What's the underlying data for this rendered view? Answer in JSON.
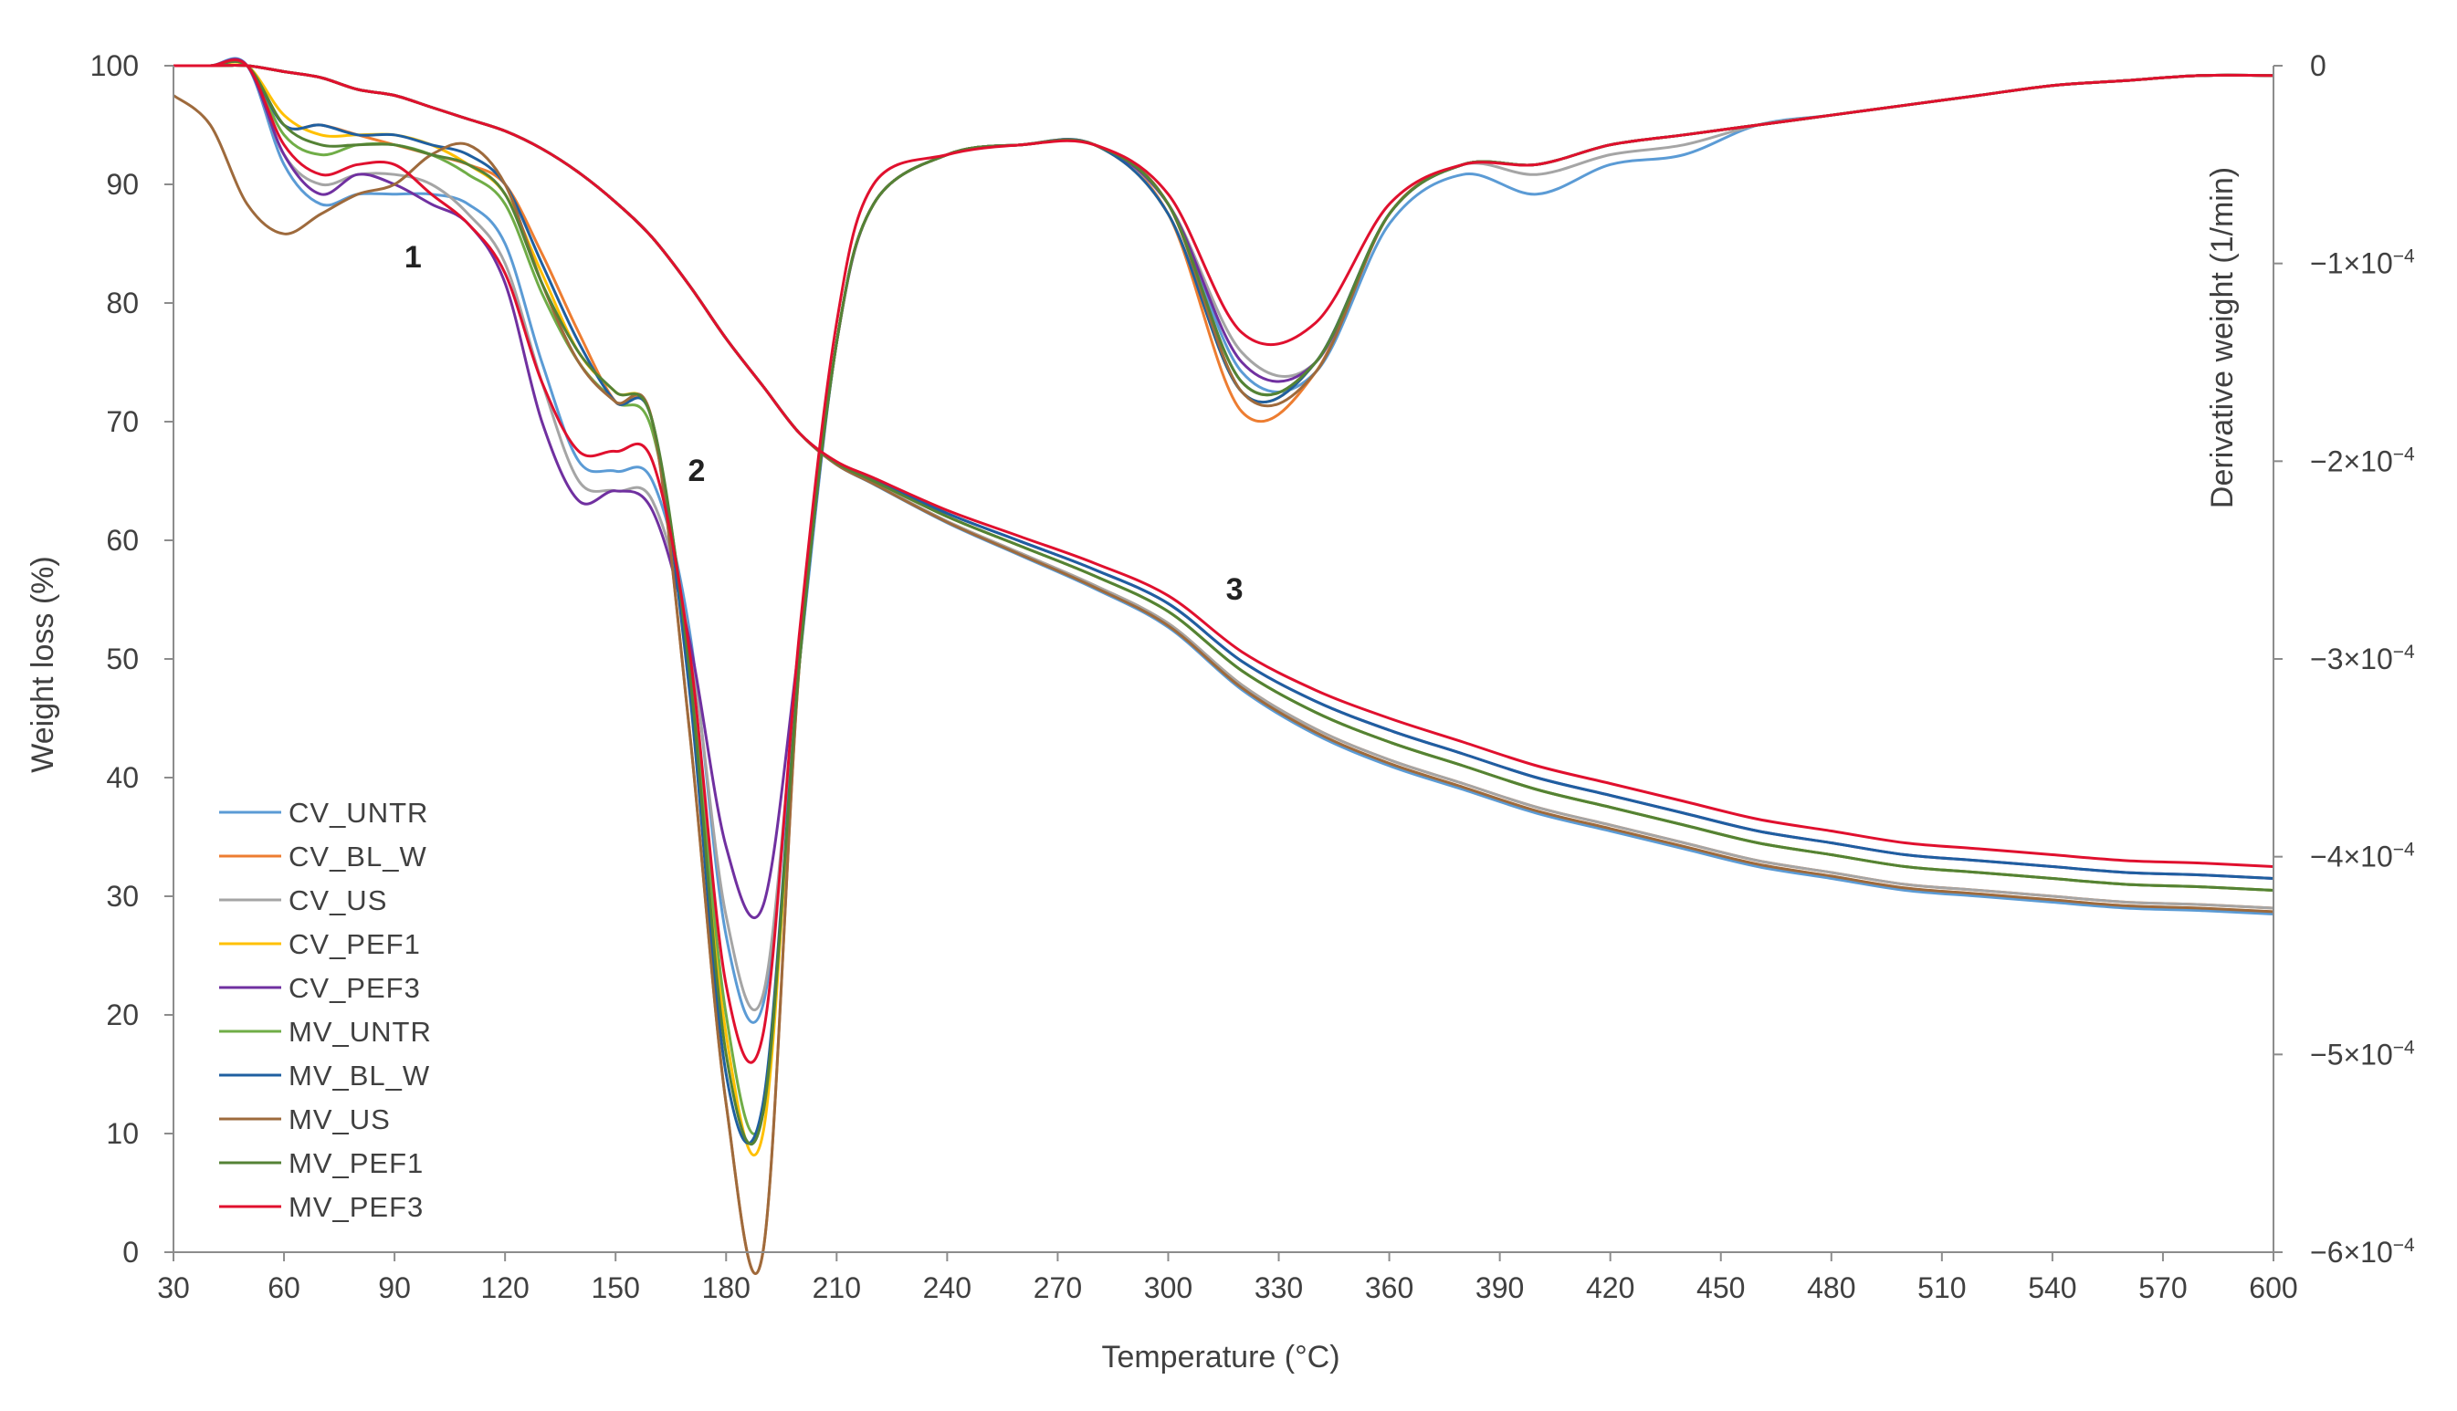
{
  "chart_data": {
    "type": "line",
    "xlabel": "Temperature (°C)",
    "ylabel_left": "Weight loss (%)",
    "ylabel_right": "Derivative weight (1/min)",
    "xlim": [
      30,
      600
    ],
    "ylim_left": [
      0,
      100
    ],
    "ylim_right": [
      -0.0006,
      0
    ],
    "x_ticks": [
      30,
      60,
      90,
      120,
      150,
      180,
      210,
      240,
      270,
      300,
      330,
      360,
      390,
      420,
      450,
      480,
      510,
      540,
      570,
      600
    ],
    "y_left_ticks": [
      0,
      10,
      20,
      30,
      40,
      50,
      60,
      70,
      80,
      90,
      100
    ],
    "y_right_ticks": [
      {
        "value": 0,
        "label": "0",
        "exp": ""
      },
      {
        "value": -0.0001,
        "label": "−1×10",
        "exp": "−4"
      },
      {
        "value": -0.0002,
        "label": "−2×10",
        "exp": "−4"
      },
      {
        "value": -0.0003,
        "label": "−3×10",
        "exp": "−4"
      },
      {
        "value": -0.0004,
        "label": "−4×10",
        "exp": "−4"
      },
      {
        "value": -0.0005,
        "label": "−5×10",
        "exp": "−4"
      },
      {
        "value": -0.0006,
        "label": "−6×10",
        "exp": "−4"
      }
    ],
    "grid": false,
    "legend_position": "bottom-left",
    "annotations": [
      {
        "text": "1",
        "x": 95,
        "y": 83
      },
      {
        "text": "2",
        "x": 172,
        "y": 65
      },
      {
        "text": "3",
        "x": 318,
        "y": 55
      }
    ],
    "tga_shared": {
      "x": [
        30,
        40,
        50,
        60,
        70,
        80,
        90,
        100,
        110,
        120,
        130,
        140,
        150,
        160,
        170,
        180,
        190,
        200,
        210,
        220,
        240,
        260,
        280,
        300,
        320,
        340,
        360,
        380,
        400,
        420,
        440,
        460,
        480,
        500,
        520,
        540,
        560,
        580,
        600
      ],
      "y": [
        100,
        100,
        100,
        99.5,
        99,
        98,
        97.5,
        96.5,
        95.5,
        94.5,
        93,
        91,
        88.5,
        85.5,
        81.5,
        77,
        73,
        69,
        66.5,
        65,
        62,
        59.5,
        57,
        54,
        49,
        45.5,
        43,
        41,
        39,
        37.5,
        36,
        34.5,
        33.5,
        32.5,
        32,
        31.5,
        31,
        30.8,
        30.5
      ]
    },
    "series": [
      {
        "name": "CV_UNTR",
        "color": "#5b9bd5",
        "tga_offset": -2,
        "dtg_rate": [
          0,
          0,
          0,
          1.0,
          1.4,
          1.3,
          1.3,
          1.3,
          1.4,
          1.8,
          3.0,
          4.0,
          4.1,
          4.2,
          5.7,
          8.8,
          9.5,
          6.0,
          2.8,
          1.4,
          0.9,
          0.8,
          0.8,
          1.4,
          3.1,
          3.1,
          1.6,
          1.1,
          1.3,
          1.0,
          0.9,
          0.6,
          0.5,
          0.4,
          0.3,
          0.2,
          0.15,
          0.1,
          0.1
        ]
      },
      {
        "name": "CV_BL_W",
        "color": "#ed7d31",
        "tga_offset": -1.5,
        "dtg_rate": [
          0,
          0,
          0,
          0.6,
          0.6,
          0.7,
          0.8,
          0.9,
          1.0,
          1.2,
          1.9,
          2.7,
          3.4,
          3.6,
          6.7,
          10.5,
          12.0,
          6.0,
          2.8,
          1.4,
          0.9,
          0.8,
          0.8,
          1.5,
          3.5,
          3.1,
          1.5,
          1.0,
          1.0,
          0.8,
          0.7,
          0.6,
          0.5,
          0.4,
          0.3,
          0.2,
          0.15,
          0.1,
          0.1
        ]
      },
      {
        "name": "CV_US",
        "color": "#a5a5a5",
        "tga_offset": -1.5,
        "dtg_rate": [
          0,
          0,
          0,
          0.9,
          1.2,
          1.1,
          1.1,
          1.2,
          1.5,
          2.0,
          3.2,
          4.2,
          4.3,
          4.4,
          5.8,
          8.6,
          9.4,
          5.9,
          2.8,
          1.4,
          0.9,
          0.8,
          0.8,
          1.4,
          2.9,
          3.0,
          1.5,
          1.0,
          1.1,
          0.9,
          0.8,
          0.6,
          0.5,
          0.4,
          0.3,
          0.2,
          0.15,
          0.1,
          0.1
        ]
      },
      {
        "name": "CV_PEF1",
        "color": "#ffc000",
        "tga_offset": 0,
        "dtg_rate": [
          0,
          0,
          0,
          0.5,
          0.7,
          0.7,
          0.7,
          0.8,
          1.0,
          1.3,
          2.1,
          2.9,
          3.3,
          3.6,
          6.2,
          9.8,
          10.8,
          6.0,
          2.8,
          1.4,
          0.9,
          0.8,
          0.8,
          1.5,
          3.3,
          3.0,
          1.5,
          1.0,
          1.0,
          0.8,
          0.7,
          0.6,
          0.5,
          0.4,
          0.3,
          0.2,
          0.15,
          0.1,
          0.1
        ]
      },
      {
        "name": "CV_PEF3",
        "color": "#7030a0",
        "tga_offset": 1,
        "dtg_rate": [
          0,
          0,
          0,
          0.9,
          1.3,
          1.1,
          1.2,
          1.4,
          1.6,
          2.2,
          3.6,
          4.4,
          4.3,
          4.5,
          5.8,
          7.9,
          8.5,
          5.8,
          2.8,
          1.4,
          0.9,
          0.8,
          0.8,
          1.4,
          3.0,
          3.0,
          1.5,
          1.0,
          1.0,
          0.8,
          0.7,
          0.6,
          0.5,
          0.4,
          0.3,
          0.2,
          0.15,
          0.1,
          0.1
        ]
      },
      {
        "name": "MV_UNTR",
        "color": "#70ad47",
        "tga_offset": 0,
        "dtg_rate": [
          0,
          0,
          0,
          0.7,
          0.9,
          0.8,
          0.8,
          0.9,
          1.1,
          1.4,
          2.3,
          3.0,
          3.4,
          3.7,
          6.0,
          9.6,
          10.6,
          6.0,
          2.8,
          1.4,
          0.9,
          0.8,
          0.8,
          1.4,
          3.2,
          3.0,
          1.5,
          1.0,
          1.0,
          0.8,
          0.7,
          0.6,
          0.5,
          0.4,
          0.3,
          0.2,
          0.15,
          0.1,
          0.1
        ]
      },
      {
        "name": "MV_BL_W",
        "color": "#1f5fa0",
        "tga_offset": 1,
        "dtg_rate": [
          0,
          0,
          0,
          0.6,
          0.6,
          0.7,
          0.7,
          0.8,
          0.9,
          1.2,
          2.0,
          2.8,
          3.4,
          3.6,
          6.3,
          10.2,
          10.5,
          6.0,
          2.8,
          1.4,
          0.9,
          0.8,
          0.8,
          1.5,
          3.3,
          3.0,
          1.5,
          1.0,
          1.0,
          0.8,
          0.7,
          0.6,
          0.5,
          0.4,
          0.3,
          0.2,
          0.15,
          0.1,
          0.1
        ]
      },
      {
        "name": "MV_US",
        "color": "#9e6a3c",
        "tga_offset": -1.8,
        "dtg_rate": [
          0.3,
          0.6,
          1.4,
          1.7,
          1.5,
          1.3,
          1.2,
          0.9,
          0.8,
          1.2,
          2.2,
          3.0,
          3.4,
          3.6,
          6.7,
          10.5,
          12.0,
          6.0,
          2.8,
          1.4,
          0.9,
          0.8,
          0.8,
          1.4,
          3.3,
          3.1,
          1.5,
          1.0,
          1.0,
          0.8,
          0.7,
          0.6,
          0.5,
          0.4,
          0.3,
          0.2,
          0.15,
          0.1,
          0.1
        ]
      },
      {
        "name": "MV_PEF1",
        "color": "#548235",
        "tga_offset": 0,
        "dtg_rate": [
          0,
          0,
          0,
          0.6,
          0.8,
          0.8,
          0.8,
          0.9,
          1.0,
          1.3,
          2.2,
          2.9,
          3.3,
          3.6,
          6.1,
          10.0,
          10.6,
          6.0,
          2.8,
          1.4,
          0.9,
          0.8,
          0.8,
          1.4,
          3.2,
          3.0,
          1.5,
          1.0,
          1.0,
          0.8,
          0.7,
          0.6,
          0.5,
          0.4,
          0.3,
          0.2,
          0.15,
          0.1,
          0.1
        ]
      },
      {
        "name": "MV_PEF3",
        "color": "#e0102e",
        "tga_offset": 2,
        "dtg_rate": [
          0,
          0,
          0,
          0.8,
          1.1,
          1.0,
          1.0,
          1.3,
          1.6,
          2.1,
          3.2,
          3.9,
          3.9,
          4.0,
          5.9,
          9.3,
          9.8,
          5.7,
          2.6,
          1.2,
          0.9,
          0.8,
          0.8,
          1.3,
          2.7,
          2.6,
          1.4,
          1.0,
          1.0,
          0.8,
          0.7,
          0.6,
          0.5,
          0.4,
          0.3,
          0.2,
          0.15,
          0.1,
          0.1
        ]
      }
    ]
  }
}
